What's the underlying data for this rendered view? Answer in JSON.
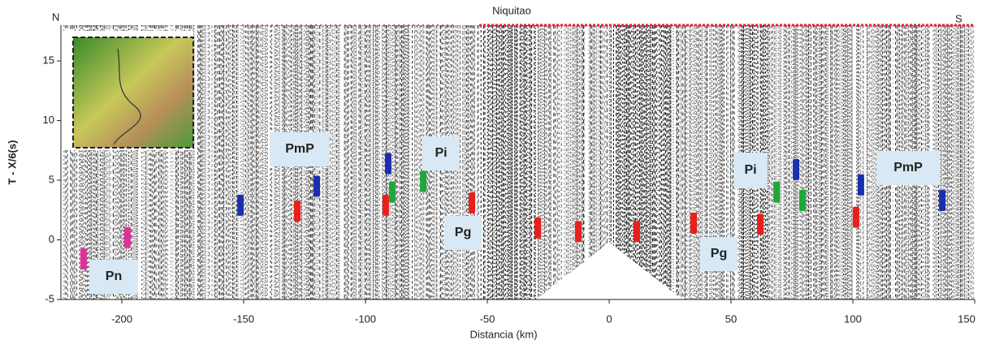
{
  "chart_data": {
    "type": "scatter",
    "title": "Niquitao",
    "start_label": "N",
    "end_label": "S",
    "xlabel": "Distancia (km)",
    "ylabel": "T - X/6(s)",
    "xlim": [
      -225,
      150
    ],
    "ylim": [
      -5,
      18
    ],
    "xticks": [
      -200,
      -150,
      -100,
      -50,
      0,
      50,
      100,
      150
    ],
    "yticks": [
      -5,
      0,
      5,
      10,
      15
    ],
    "series": [
      {
        "color": "#e0309a",
        "x": [
          -215.7,
          -197.7
        ],
        "values": [
          -1.6,
          0.2
        ]
      },
      {
        "color": "#1a2fb0",
        "x": [
          -151.3,
          -120,
          -90.7,
          76.7,
          103.3,
          136.7
        ],
        "values": [
          2.9,
          4.5,
          6.4,
          5.9,
          4.6,
          3.3
        ]
      },
      {
        "color": "#1fa83a",
        "x": [
          -89,
          -76.3,
          68.7,
          79.3
        ],
        "values": [
          4.0,
          4.9,
          4.0,
          3.3
        ]
      },
      {
        "color": "#e8201c",
        "x": [
          -128,
          -91.7,
          -56.3,
          -29.3,
          -12.7,
          11.3,
          34.7,
          62,
          101.3
        ],
        "values": [
          2.4,
          2.9,
          3.1,
          1.0,
          0.7,
          0.7,
          1.4,
          1.3,
          1.9
        ]
      }
    ],
    "annotations": [
      {
        "text": "Pn",
        "color": "#e0309a"
      },
      {
        "text": "PmP",
        "color": "#2a6fc0"
      },
      {
        "text": "Pi",
        "color": "#1fa83a"
      },
      {
        "text": "Pg",
        "color": "#e8201c"
      },
      {
        "text": "Pi",
        "color": "#1fa83a"
      },
      {
        "text": "Pg",
        "color": "#e8201c"
      },
      {
        "text": "PmP",
        "color": "#2a6fc0"
      }
    ]
  }
}
